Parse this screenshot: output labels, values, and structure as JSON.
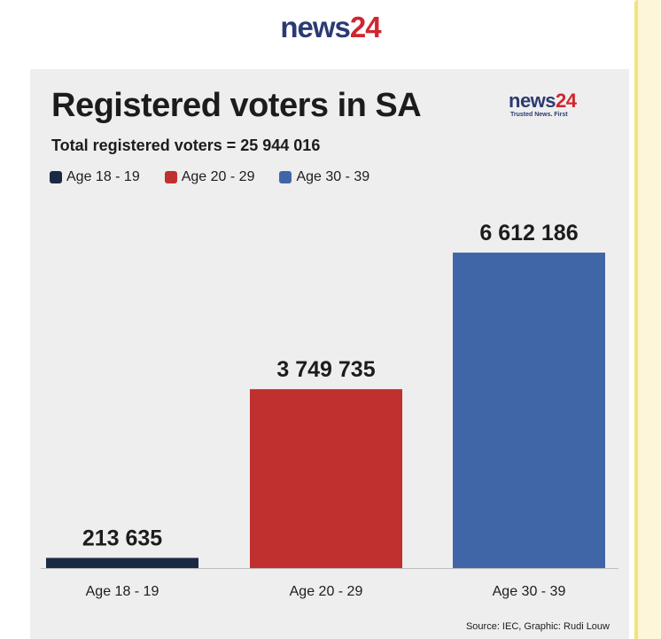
{
  "brand": {
    "logo_part1": "news",
    "logo_part2": "24",
    "tagline": "Trusted News. First"
  },
  "colors": {
    "navy": "#1b2a44",
    "red": "#c0302f",
    "blue": "#4166a8",
    "brand_navy": "#2b3a72",
    "brand_red": "#d0262f"
  },
  "chart_data": {
    "type": "bar",
    "title": "Registered voters in SA",
    "subtitle": "Total registered voters = 25 944 016",
    "categories": [
      "Age 18 - 19",
      "Age 20 - 29",
      "Age 30 - 39"
    ],
    "values": [
      213635,
      3749735,
      6612186
    ],
    "value_labels": [
      "213 635",
      "3 749 735",
      "6 612 186"
    ],
    "bar_colors": [
      "#1b2a44",
      "#c0302f",
      "#4166a8"
    ],
    "legend": [
      {
        "label": "Age 18 - 19",
        "color": "#1b2a44"
      },
      {
        "label": "Age 20 - 29",
        "color": "#c0302f"
      },
      {
        "label": "Age 30 - 39",
        "color": "#4166a8"
      }
    ],
    "legend_position": "top-left",
    "grid": false,
    "ylim": [
      0,
      8600000
    ],
    "source": "Source: IEC, Graphic: Rudi Louw"
  }
}
